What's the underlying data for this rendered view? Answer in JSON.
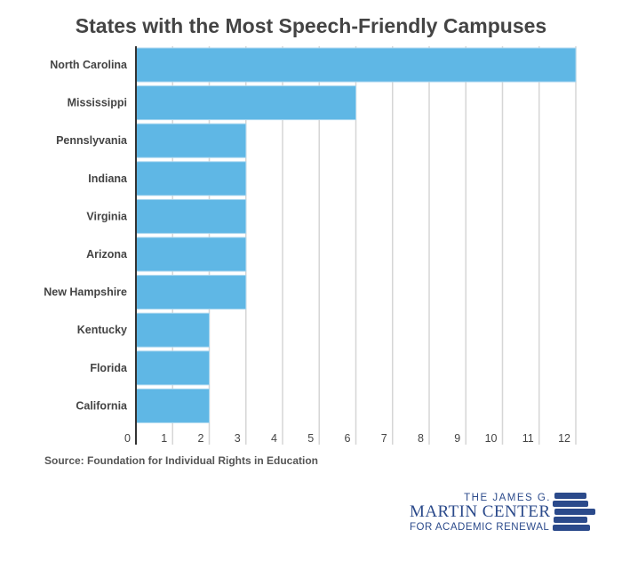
{
  "chart_data": {
    "type": "bar",
    "orientation": "horizontal",
    "title": "States with the Most Speech-Friendly Campuses",
    "categories": [
      "North Carolina",
      "Mississippi",
      "Pennslyvania",
      "Indiana",
      "Virginia",
      "Arizona",
      "New Hampshire",
      "Kentucky",
      "Florida",
      "California"
    ],
    "values": [
      12,
      6,
      3,
      3,
      3,
      3,
      3,
      2,
      2,
      2
    ],
    "xlim": [
      0,
      12
    ],
    "xticks": [
      "0",
      "1",
      "2",
      "3",
      "4",
      "5",
      "6",
      "7",
      "8",
      "9",
      "10",
      "11",
      "12"
    ],
    "grid": true,
    "bar_color": "#5fb7e5",
    "source": "Source: Foundation for Individual Rights in Education"
  },
  "logo": {
    "line1": "THE JAMES G.",
    "line2": "MARTIN CENTER",
    "line3": "FOR ACADEMIC RENEWAL",
    "color": "#2b4a8b"
  }
}
